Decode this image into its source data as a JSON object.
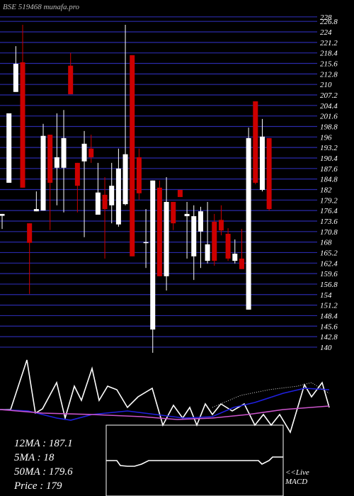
{
  "chart_data": [
    {
      "type": "candlestick",
      "title": "BSE 519468 munafa.pro",
      "open": [
        175.0,
        183.8,
        208.0,
        215.9,
        173.0,
        176.2,
        176.4,
        196.6,
        187.8,
        187.8,
        215.0,
        189.1,
        189.5,
        192.9,
        175.3,
        180.6,
        177.8,
        172.7,
        178.1,
        217.8,
        190.6,
        167.9,
        144.7,
        182.5,
        158.9,
        178.7,
        181.9,
        174.9,
        164.2,
        170.8,
        163.0,
        173.4,
        173.9,
        170.2,
        163.0,
        163.6,
        150.0,
        205.5,
        181.9,
        195.7
      ],
      "high": [
        175.5,
        202.3,
        220.2,
        225.9,
        173.0,
        181.5,
        199.5,
        196.6,
        202.3,
        203.2,
        218.4,
        189.1,
        197.6,
        196.6,
        189.1,
        185.3,
        189.1,
        192.9,
        225.9,
        217.8,
        192.9,
        176.8,
        184.4,
        184.4,
        185.3,
        178.7,
        181.9,
        178.7,
        177.8,
        177.4,
        178.7,
        175.5,
        177.8,
        171.7,
        168.7,
        171.5,
        198.5,
        205.5,
        200.8,
        195.7
      ],
      "low": [
        171.5,
        183.8,
        208.0,
        182.5,
        154.2,
        176.2,
        176.4,
        171.2,
        177.8,
        175.9,
        207.4,
        175.9,
        169.3,
        189.1,
        175.3,
        163.6,
        173.0,
        172.1,
        177.8,
        164.2,
        179.3,
        161.1,
        138.5,
        158.9,
        155.1,
        171.2,
        180.0,
        163.6,
        157.9,
        161.1,
        162.3,
        161.7,
        169.8,
        163.0,
        162.3,
        160.8,
        150.0,
        183.4,
        181.5,
        176.4
      ],
      "close": [
        175.5,
        202.3,
        215.5,
        182.5,
        167.8,
        176.8,
        196.3,
        183.8,
        190.6,
        195.7,
        207.4,
        183.0,
        194.2,
        190.6,
        181.2,
        176.8,
        183.0,
        187.6,
        191.4,
        164.2,
        181.0,
        168.0,
        184.4,
        158.9,
        178.7,
        173.0,
        180.0,
        175.5,
        174.9,
        176.2,
        167.4,
        163.0,
        171.1,
        163.6,
        164.9,
        160.8,
        195.7,
        183.8,
        196.1,
        176.8
      ],
      "up_color": "#ffffff",
      "down_color": "#cc0000",
      "grid_color": "#2a2aa8",
      "ylim": [
        138.1,
        232.5
      ],
      "yticks": [
        228,
        226.8,
        224,
        221.2,
        218.4,
        215.6,
        212.8,
        210,
        207.2,
        204.4,
        201.6,
        198.8,
        196,
        193.2,
        190.4,
        187.6,
        184.8,
        182,
        179.2,
        176.4,
        173.6,
        170.8,
        168,
        165.2,
        162.4,
        159.6,
        156.8,
        154,
        151.2,
        148.4,
        145.6,
        142.8,
        140
      ]
    },
    {
      "type": "line",
      "xlim": [
        0,
        500
      ],
      "ylim": [
        0,
        100
      ],
      "series": [
        {
          "color": "#ffffff",
          "x": [
            0,
            15,
            38,
            50,
            60,
            80,
            92,
            105,
            115,
            130,
            140,
            152,
            165,
            180,
            195,
            215,
            230,
            245,
            258,
            268,
            278,
            290,
            300,
            312,
            328,
            345,
            360,
            372,
            383,
            395,
            410,
            430,
            440,
            455,
            465
          ],
          "values": [
            22,
            22,
            92,
            17,
            23,
            60,
            10,
            55,
            35,
            80,
            35,
            55,
            50,
            25,
            40,
            52,
            0,
            28,
            10,
            25,
            0,
            30,
            15,
            30,
            20,
            30,
            0,
            15,
            0,
            15,
            -10,
            57,
            40,
            60,
            25
          ]
        },
        {
          "color": "#2020e0",
          "x": [
            0,
            40,
            80,
            100,
            130,
            180,
            220,
            260,
            300,
            330,
            360,
            400,
            430,
            465
          ],
          "values": [
            22,
            20,
            10,
            7,
            15,
            20,
            15,
            10,
            12,
            25,
            32,
            45,
            52,
            50
          ]
        },
        {
          "color": "#cc55cc",
          "x": [
            0,
            60,
            130,
            200,
            250,
            300,
            350,
            400,
            465
          ],
          "values": [
            22,
            17,
            15,
            12,
            8,
            10,
            15,
            22,
            27
          ]
        },
        {
          "color": "#dddddd",
          "dashed": true,
          "x": [
            300,
            340,
            380,
            420,
            440,
            460,
            465
          ],
          "values": [
            25,
            42,
            50,
            55,
            60,
            48,
            45
          ]
        }
      ]
    },
    {
      "type": "line",
      "xlim": [
        0,
        100
      ],
      "ylim": [
        0,
        100
      ],
      "series": [
        {
          "color": "#ffffff",
          "x": [
            0,
            6,
            8,
            12,
            16,
            20,
            24,
            80,
            86,
            88,
            92,
            94,
            100
          ],
          "values": [
            50,
            50,
            43,
            42,
            42,
            45,
            50,
            50,
            50,
            45,
            50,
            55,
            55
          ]
        }
      ]
    }
  ],
  "panel": {
    "ma_labels": [
      "12MA : 187.1",
      "5MA : 18",
      "50MA : 179.6",
      "Price   : 179"
    ],
    "macd_labels": [
      "<<Live",
      "MACD"
    ]
  }
}
